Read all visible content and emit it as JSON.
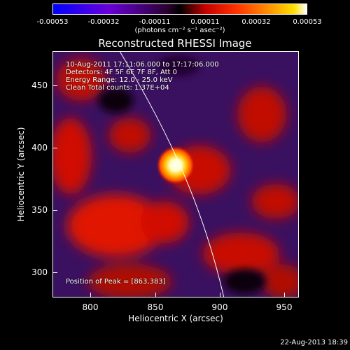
{
  "colorbar": {
    "ticks": [
      "-0.00053",
      "-0.00032",
      "-0.00011",
      "0.00011",
      "0.00032",
      "0.00053"
    ],
    "units": "(photons cm⁻² s⁻¹ asec⁻²)"
  },
  "plot": {
    "title": "Reconstructed RHESSI Image",
    "x_axis_label": "Heliocentric X (arcsec)",
    "y_axis_label": "Heliocentric Y (arcsec)",
    "x_ticks": [
      "800",
      "850",
      "900",
      "950"
    ],
    "y_ticks": [
      "300",
      "350",
      "400",
      "450"
    ],
    "x_range": [
      765,
      960
    ],
    "y_range": [
      272,
      472
    ],
    "peak": [
      863,
      383
    ]
  },
  "annotations": {
    "time_range": "10-Aug-2011 17:11:06.000 to 17:17:06.000",
    "detectors": "Detectors: 4F 5F 6F 7F 8F, Att 0",
    "energy_range": "Energy Range: 12.0 - 25.0 keV",
    "clean_counts": "Clean    Total counts: 1.37E+04",
    "peak_position": "Position of Peak = [863,383]"
  },
  "timestamp": "22-Aug-2013 18:39"
}
